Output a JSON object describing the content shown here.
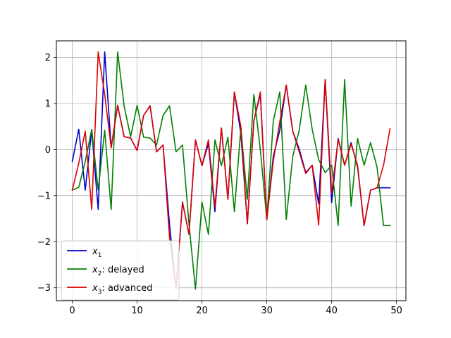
{
  "chart_data": {
    "type": "line",
    "title": "",
    "xlabel": "",
    "ylabel": "",
    "xlim": [
      -2.45,
      51.45
    ],
    "ylim": [
      -3.28,
      2.36
    ],
    "xticks": [
      0,
      10,
      20,
      30,
      40,
      50
    ],
    "yticks": [
      -3,
      -2,
      -1,
      0,
      1,
      2
    ],
    "xtick_labels": [
      "0",
      "10",
      "20",
      "30",
      "40",
      "50"
    ],
    "ytick_labels": [
      "−3",
      "−2",
      "−1",
      "0",
      "1",
      "2"
    ],
    "grid": true,
    "legend_position": "lower-left",
    "x": [
      0,
      1,
      2,
      3,
      4,
      5,
      6,
      7,
      8,
      9,
      10,
      11,
      12,
      13,
      14,
      15,
      16,
      17,
      18,
      19,
      20,
      21,
      22,
      23,
      24,
      25,
      26,
      27,
      28,
      29,
      30,
      31,
      32,
      33,
      34,
      35,
      36,
      37,
      38,
      39,
      40,
      41,
      42,
      43,
      44,
      45,
      46,
      47,
      48,
      49
    ],
    "series": [
      {
        "name": "x_1",
        "legend": {
          "base": "x",
          "sub": "1",
          "suffix": ""
        },
        "color": "#0000cc",
        "values": [
          -0.26,
          0.44,
          -0.88,
          0.42,
          -1.3,
          2.12,
          0.04,
          0.96,
          0.28,
          0.25,
          -0.02,
          0.74,
          0.95,
          -0.05,
          0.1,
          -1.62,
          -3.03,
          -1.14,
          -1.84,
          0.21,
          -0.35,
          0.13,
          -1.35,
          0.47,
          -1.08,
          1.25,
          0.35,
          -1.61,
          0.62,
          1.2,
          -1.52,
          -0.15,
          0.42,
          1.4,
          0.4,
          0.01,
          -0.5,
          -0.34,
          -1.18,
          1.52,
          -1.15,
          0.24,
          -0.34,
          0.15,
          -0.38,
          -1.65,
          -0.88,
          -0.83,
          -0.83,
          -0.83
        ]
      },
      {
        "name": "x_2: delayed",
        "legend": {
          "base": "x",
          "sub": "2",
          "suffix": ": delayed"
        },
        "color": "#008000",
        "values": [
          -0.88,
          -0.82,
          -0.26,
          0.44,
          -0.88,
          0.42,
          -1.3,
          2.12,
          0.94,
          0.28,
          0.96,
          0.27,
          0.25,
          0.1,
          0.74,
          0.95,
          -0.05,
          0.1,
          -1.62,
          -3.03,
          -1.14,
          -1.84,
          0.21,
          -0.35,
          0.27,
          -1.35,
          0.47,
          -1.08,
          1.2,
          0.0,
          -1.52,
          0.62,
          1.25,
          -1.52,
          -0.15,
          0.42,
          1.4,
          0.44,
          -0.22,
          -0.5,
          -0.34,
          -1.65,
          1.52,
          -1.23,
          0.24,
          -0.34,
          0.15,
          -0.38,
          -1.65,
          -1.65
        ]
      },
      {
        "name": "x_3: advanced",
        "legend": {
          "base": "x",
          "sub": "3",
          "suffix": ": advanced"
        },
        "color": "#dd0000",
        "values": [
          -0.88,
          -0.3,
          0.4,
          -1.3,
          2.12,
          1.2,
          0.04,
          0.96,
          0.28,
          0.25,
          -0.02,
          0.74,
          0.95,
          -0.05,
          0.1,
          -1.9,
          -3.03,
          -1.14,
          -1.84,
          0.21,
          -0.35,
          0.21,
          -1.24,
          0.47,
          -1.08,
          1.25,
          0.5,
          -1.61,
          0.62,
          1.25,
          -1.52,
          -0.25,
          0.6,
          1.4,
          0.4,
          -0.05,
          -0.52,
          -0.34,
          -1.64,
          1.52,
          -0.95,
          0.22,
          -0.34,
          0.12,
          -0.34,
          -1.65,
          -0.88,
          -0.83,
          -0.34,
          0.45
        ]
      }
    ]
  }
}
